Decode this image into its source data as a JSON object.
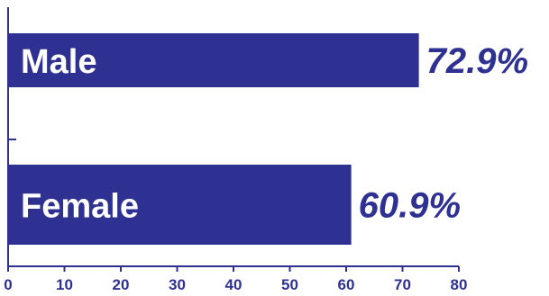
{
  "chart_data": {
    "type": "bar",
    "orientation": "horizontal",
    "categories": [
      "Male",
      "Female"
    ],
    "values": [
      72.9,
      60.9
    ],
    "value_labels": [
      "72.9%",
      "60.9%"
    ],
    "title": "",
    "xlabel": "",
    "ylabel": "",
    "xlim": [
      0,
      80
    ],
    "x_ticks": [
      "0",
      "10",
      "20",
      "30",
      "40",
      "50",
      "60",
      "70",
      "80"
    ],
    "grid": false,
    "legend": "none",
    "colors": {
      "bar": "#2e3192",
      "text": "#2e3192",
      "axis": "#2e3192",
      "bar_label": "#ffffff"
    }
  }
}
